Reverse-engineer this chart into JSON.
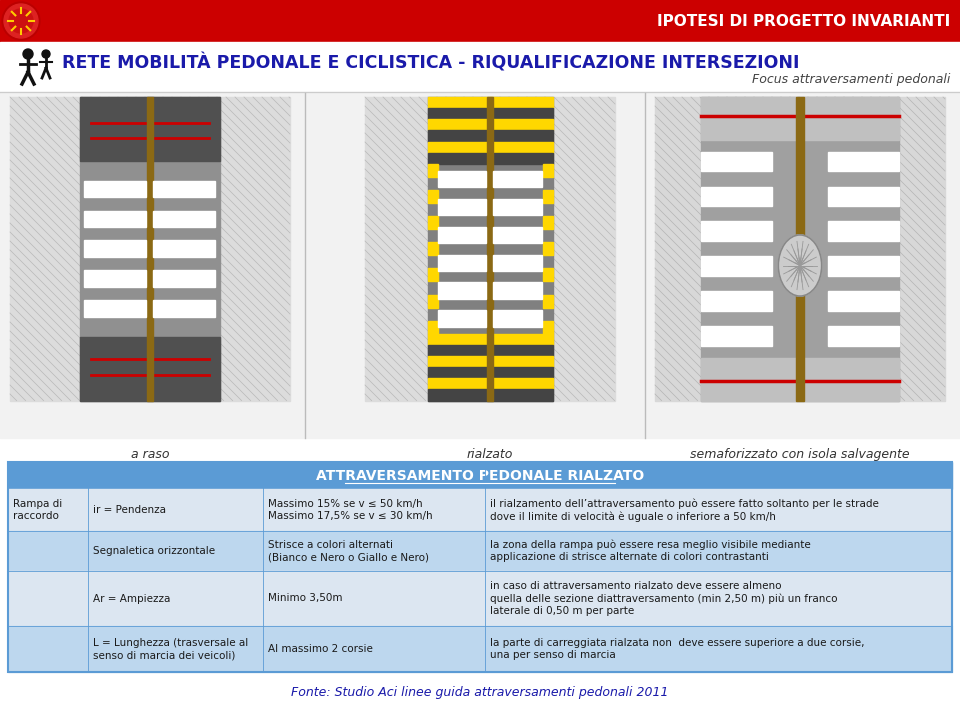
{
  "header_bg": "#cc0000",
  "header_text": "IPOTESI DI PROGETTO INVARIANTI",
  "header_text_color": "#ffffff",
  "title_text": "RETE MOBILITÀ PEDONALE E CICLISTICA - RIQUALIFICAZIONE INTERSEZIONI",
  "title_color": "#1a1aaa",
  "subtitle_text": "Focus attraversamenti pedonali",
  "subtitle_color": "#444444",
  "label1": "a raso",
  "label2": "rialzato",
  "label3": "semaforizzato con isola salvagente",
  "table_header_bg": "#5b9bd5",
  "table_header_text": "ATTRAVERSAMENTO PEDONALE RIALZATO",
  "table_row_bg1": "#dce6f1",
  "table_row_bg2": "#bdd7ee",
  "table_border": "#5b9bd5",
  "footer_text": "Fonte: Studio Aci linee guida attraversamenti pedonali 2011",
  "footer_color": "#1a1aaa",
  "rows": [
    {
      "col1": "Rampa di\nraccordo",
      "col2": "ir = Pendenza",
      "col3": "Massimo 15% se v ≤ 50 km/h\nMassimo 17,5% se v ≤ 30 km/h",
      "col4": "il rialzamento dell’attraversamento può essere fatto soltanto per le strade\ndove il limite di velocità è uguale o inferiore a 50 km/h"
    },
    {
      "col1": "",
      "col2": "Segnaletica orizzontale",
      "col3": "Strisce a colori alternati\n(Bianco e Nero o Giallo e Nero)",
      "col4": "la zona della rampa può essere resa meglio visibile mediante\napplicazione di strisce alternate di colori contrastanti"
    },
    {
      "col1": "",
      "col2": "Ar = Ampiezza",
      "col3": "Minimo 3,50m",
      "col4": "in caso di attraversamento rialzato deve essere almeno\nquella delle sezione diattraversamento (min 2,50 m) più un franco\nlaterale di 0,50 m per parte"
    },
    {
      "col1": "",
      "col2": "L = Lunghezza (trasversale al\nsenso di marcia dei veicoli)",
      "col3": "Al massimo 2 corsie",
      "col4": "la parte di carreggiata rialzata non  deve essere superiore a due corsie,\nuna per senso di marcia"
    }
  ]
}
